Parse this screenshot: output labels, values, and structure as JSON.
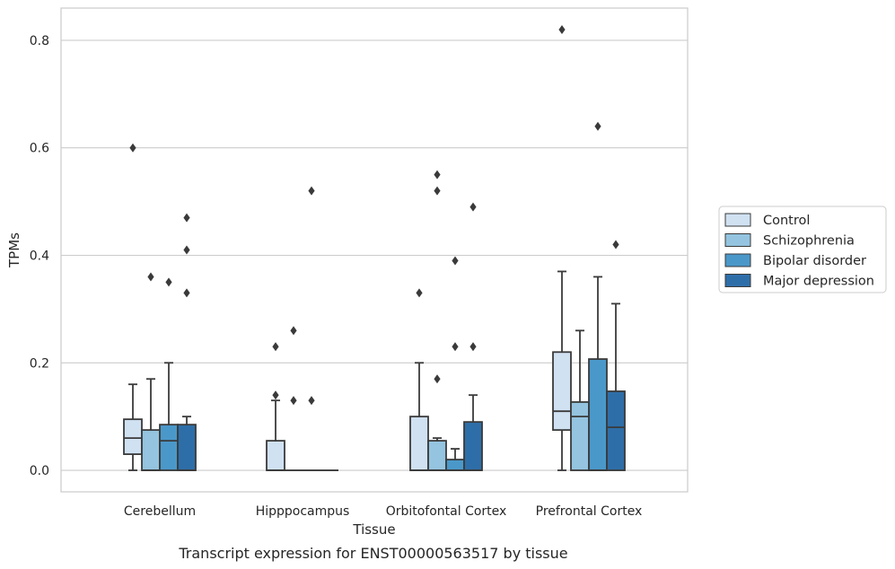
{
  "caption": "Transcript expression for ENST00000563517 by tissue",
  "chart_data": {
    "type": "box",
    "title": "",
    "xlabel": "Tissue",
    "ylabel": "TPMs",
    "ylim": [
      -0.04,
      0.86
    ],
    "yticks": [
      "0.0",
      "0.2",
      "0.4",
      "0.6",
      "0.8"
    ],
    "ytick_values": [
      0,
      0.2,
      0.4,
      0.6,
      0.8
    ],
    "grid": "horizontal",
    "legend_position": "right",
    "categories": [
      "Cerebellum",
      "Hipppocampus",
      "Orbitofontal Cortex",
      "Prefrontal Cortex"
    ],
    "series": [
      {
        "name": "Control",
        "color": "#d0e1f2",
        "boxes": [
          {
            "whislo": 0,
            "q1": 0.03,
            "med": 0.06,
            "q3": 0.095,
            "whishi": 0.16,
            "fliers": [
              0.6
            ]
          },
          {
            "whislo": 0,
            "q1": 0,
            "med": 0,
            "q3": 0.055,
            "whishi": 0.13,
            "fliers": [
              0.14,
              0.23
            ]
          },
          {
            "whislo": 0,
            "q1": 0,
            "med": 0,
            "q3": 0.1,
            "whishi": 0.2,
            "fliers": [
              0.33
            ]
          },
          {
            "whislo": 0,
            "q1": 0.075,
            "med": 0.11,
            "q3": 0.22,
            "whishi": 0.37,
            "fliers": [
              0.82
            ]
          }
        ]
      },
      {
        "name": "Schizophrenia",
        "color": "#94c4df",
        "boxes": [
          {
            "whislo": 0,
            "q1": 0,
            "med": 0,
            "q3": 0.075,
            "whishi": 0.17,
            "fliers": [
              0.36
            ]
          },
          {
            "whislo": 0,
            "q1": 0,
            "med": 0,
            "q3": 0,
            "whishi": 0,
            "fliers": [
              0.13,
              0.26
            ]
          },
          {
            "whislo": 0,
            "q1": 0,
            "med": 0,
            "q3": 0.055,
            "whishi": 0.06,
            "fliers": [
              0.17,
              0.52,
              0.55
            ]
          },
          {
            "whislo": 0,
            "q1": 0,
            "med": 0.1,
            "q3": 0.127,
            "whishi": 0.26,
            "fliers": []
          }
        ]
      },
      {
        "name": "Bipolar disorder",
        "color": "#4a98c9",
        "boxes": [
          {
            "whislo": 0,
            "q1": 0,
            "med": 0.055,
            "q3": 0.085,
            "whishi": 0.2,
            "fliers": [
              0.35
            ]
          },
          {
            "whislo": 0,
            "q1": 0,
            "med": 0,
            "q3": 0,
            "whishi": 0,
            "fliers": [
              0.13,
              0.52
            ]
          },
          {
            "whislo": 0,
            "q1": 0,
            "med": 0,
            "q3": 0.02,
            "whishi": 0.04,
            "fliers": [
              0.23,
              0.39
            ]
          },
          {
            "whislo": 0,
            "q1": 0,
            "med": 0,
            "q3": 0.207,
            "whishi": 0.36,
            "fliers": [
              0.64
            ]
          }
        ]
      },
      {
        "name": "Major depression",
        "color": "#2e6ea8",
        "boxes": [
          {
            "whislo": 0,
            "q1": 0,
            "med": 0,
            "q3": 0.085,
            "whishi": 0.1,
            "fliers": [
              0.33,
              0.41,
              0.47
            ]
          },
          {
            "whislo": 0,
            "q1": 0,
            "med": 0,
            "q3": 0,
            "whishi": 0,
            "fliers": []
          },
          {
            "whislo": 0,
            "q1": 0,
            "med": 0,
            "q3": 0.09,
            "whishi": 0.14,
            "fliers": [
              0.23,
              0.49
            ]
          },
          {
            "whislo": 0,
            "q1": 0,
            "med": 0.08,
            "q3": 0.147,
            "whishi": 0.31,
            "fliers": [
              0.42
            ]
          }
        ]
      }
    ]
  }
}
